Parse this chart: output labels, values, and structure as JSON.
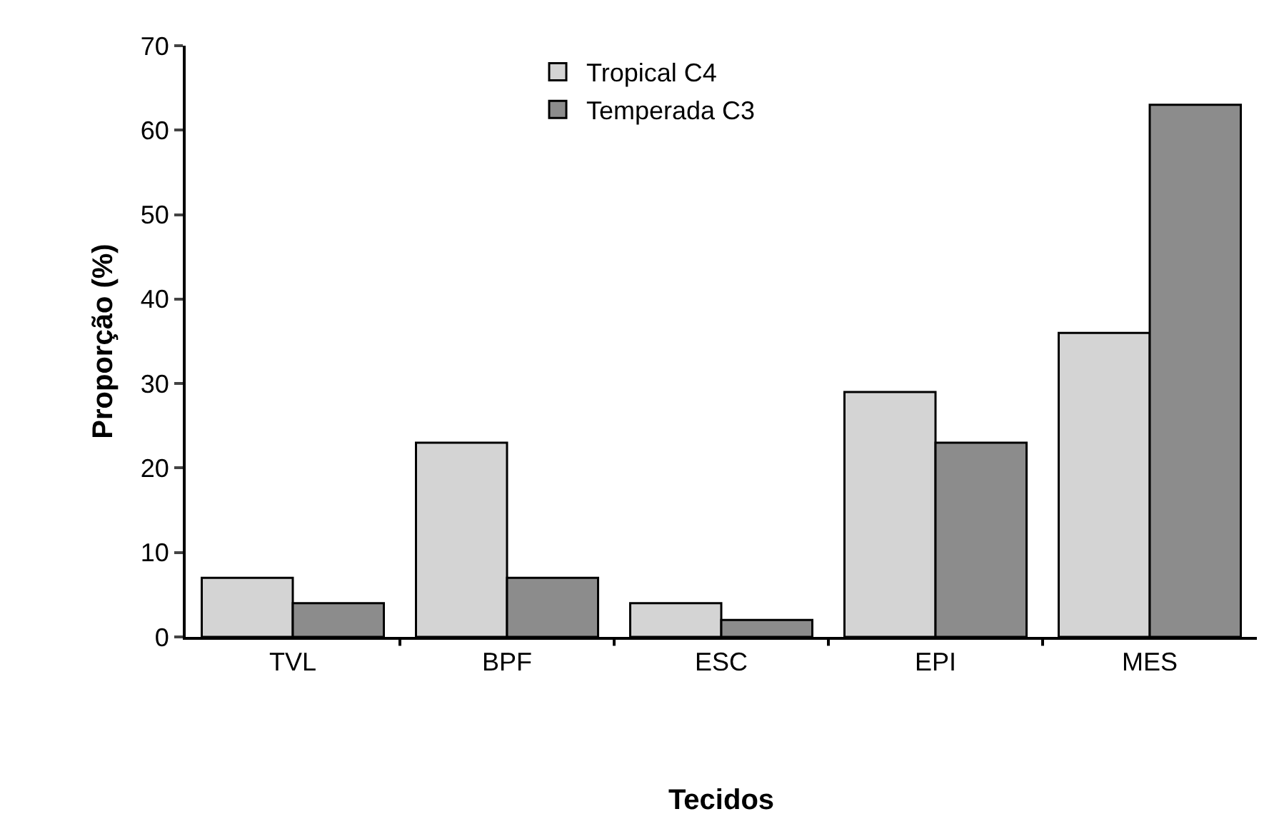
{
  "chart_data": {
    "type": "bar",
    "xlabel": "Tecidos",
    "ylabel": "Proporção (%)",
    "categories": [
      "TVL",
      "BPF",
      "ESC",
      "EPI",
      "MES"
    ],
    "series": [
      {
        "name": "Tropical C4",
        "color": "#d4d4d4",
        "values": [
          7,
          23,
          4,
          29,
          36
        ]
      },
      {
        "name": "Temperada C3",
        "color": "#8c8c8c",
        "values": [
          4,
          7,
          2,
          23,
          63
        ]
      }
    ],
    "ylim": [
      0,
      70
    ],
    "yticks": [
      0,
      10,
      20,
      30,
      40,
      50,
      60,
      70
    ],
    "grid": false,
    "legend": "top"
  }
}
